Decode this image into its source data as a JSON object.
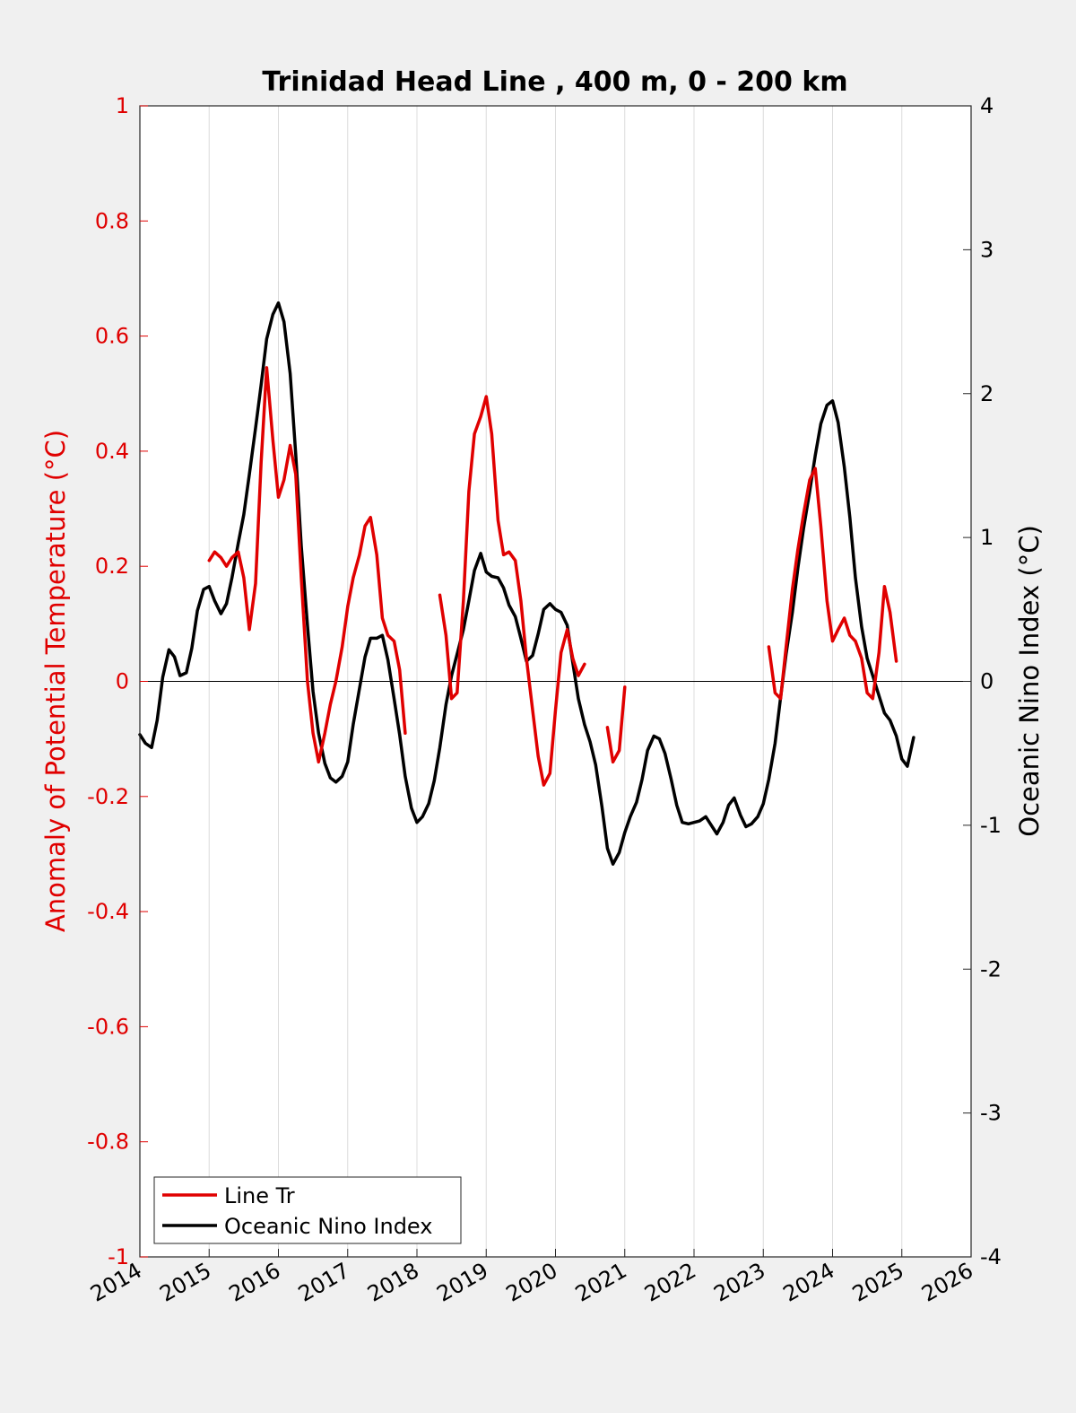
{
  "chart_data": {
    "type": "line",
    "title": "Trinidad Head Line , 400 m, 0 - 200 km",
    "xlabel": "",
    "ylabel_left": "Anomaly of Potential Temperature (°C)",
    "ylabel_right": "Oceanic Nino Index (°C)",
    "xlim": [
      2014,
      2026
    ],
    "ylim_left": [
      -1,
      1
    ],
    "ylim_right": [
      -4,
      4
    ],
    "x_ticks": [
      "2014",
      "2015",
      "2016",
      "2017",
      "2018",
      "2019",
      "2020",
      "2021",
      "2022",
      "2023",
      "2024",
      "2025",
      "2026"
    ],
    "y_ticks_left": [
      "1",
      "0.8",
      "0.6",
      "0.4",
      "0.2",
      "0",
      "-0.2",
      "-0.4",
      "-0.6",
      "-0.8",
      "-1"
    ],
    "y_ticks_right": [
      "4",
      "3",
      "2",
      "1",
      "0",
      "-1",
      "-2",
      "-3",
      "-4"
    ],
    "grid": "vertical",
    "zero_line": true,
    "legend": "bottom-left",
    "colors": {
      "line_tr": "#e00000",
      "oni": "#000000",
      "left_axis": "#e00000"
    },
    "series": [
      {
        "name": "Line Tr",
        "axis": "left",
        "segments": [
          [
            [
              2015.0,
              0.21
            ],
            [
              2015.08,
              0.225
            ],
            [
              2015.17,
              0.215
            ],
            [
              2015.25,
              0.2
            ],
            [
              2015.33,
              0.215
            ],
            [
              2015.42,
              0.225
            ],
            [
              2015.5,
              0.18
            ],
            [
              2015.58,
              0.09
            ],
            [
              2015.67,
              0.17
            ],
            [
              2015.75,
              0.38
            ],
            [
              2015.83,
              0.545
            ],
            [
              2015.92,
              0.42
            ],
            [
              2016.0,
              0.32
            ],
            [
              2016.08,
              0.35
            ],
            [
              2016.17,
              0.41
            ],
            [
              2016.25,
              0.36
            ],
            [
              2016.33,
              0.18
            ],
            [
              2016.42,
              0.0
            ],
            [
              2016.5,
              -0.09
            ],
            [
              2016.58,
              -0.14
            ],
            [
              2016.67,
              -0.09
            ],
            [
              2016.75,
              -0.04
            ],
            [
              2016.83,
              0.0
            ],
            [
              2016.92,
              0.06
            ],
            [
              2017.0,
              0.13
            ],
            [
              2017.08,
              0.18
            ],
            [
              2017.17,
              0.22
            ],
            [
              2017.25,
              0.27
            ],
            [
              2017.33,
              0.285
            ],
            [
              2017.42,
              0.22
            ],
            [
              2017.5,
              0.11
            ],
            [
              2017.58,
              0.08
            ],
            [
              2017.67,
              0.07
            ],
            [
              2017.75,
              0.02
            ],
            [
              2017.83,
              -0.09
            ]
          ],
          [
            [
              2018.33,
              0.15
            ],
            [
              2018.42,
              0.08
            ],
            [
              2018.5,
              -0.03
            ],
            [
              2018.58,
              -0.02
            ],
            [
              2018.67,
              0.14
            ],
            [
              2018.75,
              0.33
            ],
            [
              2018.83,
              0.43
            ],
            [
              2018.92,
              0.46
            ],
            [
              2019.0,
              0.495
            ],
            [
              2019.08,
              0.43
            ],
            [
              2019.17,
              0.28
            ],
            [
              2019.25,
              0.22
            ],
            [
              2019.33,
              0.225
            ],
            [
              2019.42,
              0.21
            ],
            [
              2019.5,
              0.14
            ],
            [
              2019.58,
              0.04
            ],
            [
              2019.67,
              -0.05
            ],
            [
              2019.75,
              -0.13
            ],
            [
              2019.83,
              -0.18
            ],
            [
              2019.92,
              -0.16
            ],
            [
              2020.0,
              -0.05
            ],
            [
              2020.08,
              0.05
            ],
            [
              2020.17,
              0.09
            ],
            [
              2020.25,
              0.04
            ],
            [
              2020.33,
              0.01
            ],
            [
              2020.42,
              0.03
            ]
          ],
          [
            [
              2020.75,
              -0.08
            ],
            [
              2020.83,
              -0.14
            ],
            [
              2020.92,
              -0.12
            ],
            [
              2021.0,
              -0.01
            ]
          ],
          [
            [
              2023.08,
              0.06
            ],
            [
              2023.17,
              -0.02
            ],
            [
              2023.25,
              -0.03
            ],
            [
              2023.33,
              0.06
            ],
            [
              2023.42,
              0.16
            ],
            [
              2023.5,
              0.23
            ],
            [
              2023.58,
              0.29
            ],
            [
              2023.67,
              0.35
            ],
            [
              2023.75,
              0.37
            ],
            [
              2023.83,
              0.27
            ],
            [
              2023.92,
              0.14
            ],
            [
              2024.0,
              0.07
            ],
            [
              2024.08,
              0.09
            ],
            [
              2024.17,
              0.11
            ],
            [
              2024.25,
              0.08
            ],
            [
              2024.33,
              0.07
            ],
            [
              2024.42,
              0.04
            ],
            [
              2024.5,
              -0.02
            ],
            [
              2024.58,
              -0.03
            ],
            [
              2024.67,
              0.05
            ],
            [
              2024.75,
              0.165
            ],
            [
              2024.83,
              0.12
            ],
            [
              2024.92,
              0.035
            ]
          ]
        ]
      },
      {
        "name": "Oceanic Nino Index",
        "axis": "right",
        "segments": [
          [
            [
              2014.0,
              -0.37
            ],
            [
              2014.08,
              -0.43
            ],
            [
              2014.17,
              -0.46
            ],
            [
              2014.25,
              -0.27
            ],
            [
              2014.33,
              0.03
            ],
            [
              2014.42,
              0.22
            ],
            [
              2014.5,
              0.17
            ],
            [
              2014.58,
              0.04
            ],
            [
              2014.67,
              0.06
            ],
            [
              2014.75,
              0.23
            ],
            [
              2014.83,
              0.49
            ],
            [
              2014.92,
              0.64
            ],
            [
              2015.0,
              0.66
            ],
            [
              2015.08,
              0.56
            ],
            [
              2015.17,
              0.47
            ],
            [
              2015.25,
              0.54
            ],
            [
              2015.33,
              0.72
            ],
            [
              2015.42,
              0.96
            ],
            [
              2015.5,
              1.16
            ],
            [
              2015.58,
              1.44
            ],
            [
              2015.67,
              1.76
            ],
            [
              2015.75,
              2.06
            ],
            [
              2015.83,
              2.38
            ],
            [
              2015.92,
              2.55
            ],
            [
              2016.0,
              2.63
            ],
            [
              2016.08,
              2.5
            ],
            [
              2016.17,
              2.14
            ],
            [
              2016.25,
              1.58
            ],
            [
              2016.33,
              0.94
            ],
            [
              2016.42,
              0.39
            ],
            [
              2016.5,
              -0.07
            ],
            [
              2016.58,
              -0.36
            ],
            [
              2016.67,
              -0.57
            ],
            [
              2016.75,
              -0.67
            ],
            [
              2016.83,
              -0.7
            ],
            [
              2016.92,
              -0.66
            ],
            [
              2017.0,
              -0.56
            ],
            [
              2017.08,
              -0.3
            ],
            [
              2017.17,
              -0.05
            ],
            [
              2017.25,
              0.17
            ],
            [
              2017.33,
              0.3
            ],
            [
              2017.42,
              0.3
            ],
            [
              2017.5,
              0.32
            ],
            [
              2017.58,
              0.15
            ],
            [
              2017.67,
              -0.12
            ],
            [
              2017.75,
              -0.37
            ],
            [
              2017.83,
              -0.66
            ],
            [
              2017.92,
              -0.88
            ],
            [
              2018.0,
              -0.98
            ],
            [
              2018.08,
              -0.94
            ],
            [
              2018.17,
              -0.85
            ],
            [
              2018.25,
              -0.69
            ],
            [
              2018.33,
              -0.46
            ],
            [
              2018.42,
              -0.16
            ],
            [
              2018.5,
              0.04
            ],
            [
              2018.58,
              0.19
            ],
            [
              2018.67,
              0.36
            ],
            [
              2018.75,
              0.56
            ],
            [
              2018.83,
              0.77
            ],
            [
              2018.92,
              0.89
            ],
            [
              2019.0,
              0.76
            ],
            [
              2019.08,
              0.73
            ],
            [
              2019.17,
              0.72
            ],
            [
              2019.25,
              0.65
            ],
            [
              2019.33,
              0.53
            ],
            [
              2019.42,
              0.45
            ],
            [
              2019.5,
              0.3
            ],
            [
              2019.58,
              0.14
            ],
            [
              2019.67,
              0.18
            ],
            [
              2019.75,
              0.33
            ],
            [
              2019.83,
              0.5
            ],
            [
              2019.92,
              0.54
            ],
            [
              2020.0,
              0.5
            ],
            [
              2020.08,
              0.48
            ],
            [
              2020.17,
              0.39
            ],
            [
              2020.25,
              0.13
            ],
            [
              2020.33,
              -0.12
            ],
            [
              2020.42,
              -0.3
            ],
            [
              2020.5,
              -0.42
            ],
            [
              2020.58,
              -0.58
            ],
            [
              2020.67,
              -0.87
            ],
            [
              2020.75,
              -1.16
            ],
            [
              2020.83,
              -1.27
            ],
            [
              2020.92,
              -1.19
            ],
            [
              2021.0,
              -1.05
            ],
            [
              2021.08,
              -0.94
            ],
            [
              2021.17,
              -0.84
            ],
            [
              2021.25,
              -0.68
            ],
            [
              2021.33,
              -0.48
            ],
            [
              2021.42,
              -0.38
            ],
            [
              2021.5,
              -0.4
            ],
            [
              2021.58,
              -0.5
            ],
            [
              2021.67,
              -0.68
            ],
            [
              2021.75,
              -0.86
            ],
            [
              2021.83,
              -0.98
            ],
            [
              2021.92,
              -0.99
            ],
            [
              2022.0,
              -0.98
            ],
            [
              2022.08,
              -0.97
            ],
            [
              2022.17,
              -0.94
            ],
            [
              2022.25,
              -1.0
            ],
            [
              2022.33,
              -1.06
            ],
            [
              2022.42,
              -0.98
            ],
            [
              2022.5,
              -0.86
            ],
            [
              2022.58,
              -0.81
            ],
            [
              2022.67,
              -0.93
            ],
            [
              2022.75,
              -1.01
            ],
            [
              2022.83,
              -0.99
            ],
            [
              2022.92,
              -0.94
            ],
            [
              2023.0,
              -0.85
            ],
            [
              2023.08,
              -0.68
            ],
            [
              2023.17,
              -0.43
            ],
            [
              2023.25,
              -0.11
            ],
            [
              2023.33,
              0.19
            ],
            [
              2023.42,
              0.48
            ],
            [
              2023.5,
              0.79
            ],
            [
              2023.58,
              1.06
            ],
            [
              2023.67,
              1.32
            ],
            [
              2023.75,
              1.57
            ],
            [
              2023.83,
              1.79
            ],
            [
              2023.92,
              1.92
            ],
            [
              2024.0,
              1.95
            ],
            [
              2024.08,
              1.8
            ],
            [
              2024.17,
              1.49
            ],
            [
              2024.25,
              1.14
            ],
            [
              2024.33,
              0.72
            ],
            [
              2024.42,
              0.38
            ],
            [
              2024.5,
              0.16
            ],
            [
              2024.58,
              0.04
            ],
            [
              2024.67,
              -0.1
            ],
            [
              2024.75,
              -0.22
            ],
            [
              2024.83,
              -0.27
            ],
            [
              2024.92,
              -0.38
            ],
            [
              2025.0,
              -0.54
            ],
            [
              2025.08,
              -0.59
            ],
            [
              2025.17,
              -0.39
            ]
          ]
        ]
      }
    ]
  }
}
